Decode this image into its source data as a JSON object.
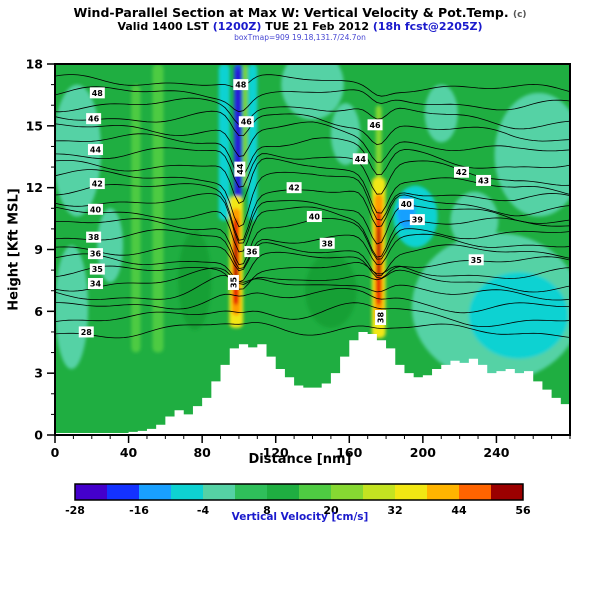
{
  "header": {
    "title": "Wind-Parallel Section at Max W: Vertical Velocity & Pot.Temp.",
    "title_suffix": "(c)",
    "valid": {
      "prefix": "Valid 1400 LST ",
      "zulu": "(1200Z)",
      "mid": " TUE 21 Feb 2012 ",
      "fcst": "(18h fcst@2205Z)"
    },
    "meta_line": "boxTmap=909 19.18,131.7/24.7on"
  },
  "colors": {
    "accent_blue": "#1a1acc",
    "meta_blue": "#4646d2",
    "axis_black": "#000000"
  },
  "chart_data": {
    "type": "heatmap",
    "title": "Wind-Parallel Section at Max W: Vertical Velocity & Pot.Temp. (c)",
    "subtitle": "Valid 1400 LST (1200Z) TUE 21 Feb 2012 (18h fcst@2205Z)",
    "xlabel": "Distance [nm]",
    "ylabel": "Height [Kft MSL]",
    "xlim": [
      0,
      280
    ],
    "ylim": [
      0,
      18
    ],
    "x_ticks": [
      0,
      40,
      80,
      120,
      160,
      200,
      240
    ],
    "x_minor_step": 10,
    "y_ticks": [
      0,
      3,
      6,
      9,
      12,
      15,
      18
    ],
    "y_minor_step": 1,
    "grid": false,
    "background_value_color": "#1fae41",
    "colorbar": {
      "label": "Vertical Velocity [cm/s]",
      "tick_values": [
        -28,
        -16,
        -4,
        8,
        20,
        32,
        44,
        56
      ],
      "segment_min": -28,
      "segment_step": 6,
      "colors": [
        "#4400cc",
        "#1432ff",
        "#19a0ff",
        "#0ed2d2",
        "#55d2a5",
        "#2fbf5a",
        "#1fae41",
        "#4ecb42",
        "#86d832",
        "#c3e321",
        "#f2e713",
        "#ffb400",
        "#ff6400",
        "#e61400"
      ],
      "last_color": "#9b0000"
    },
    "contours": {
      "variable": "Potential Temperature",
      "unit": "C",
      "interval": 1,
      "level_min": 28,
      "level_max": 49,
      "labels": [
        {
          "v": 28,
          "x": 17,
          "y": 5.0
        },
        {
          "v": 34,
          "x": 22,
          "y": 7.35
        },
        {
          "v": 35,
          "x": 23,
          "y": 8.05
        },
        {
          "v": 36,
          "x": 22,
          "y": 8.8
        },
        {
          "v": 38,
          "x": 21,
          "y": 9.6
        },
        {
          "v": 40,
          "x": 22,
          "y": 10.95
        },
        {
          "v": 42,
          "x": 23,
          "y": 12.2
        },
        {
          "v": 44,
          "x": 22,
          "y": 13.85
        },
        {
          "v": 46,
          "x": 21,
          "y": 15.35
        },
        {
          "v": 48,
          "x": 23,
          "y": 16.6
        },
        {
          "v": 35,
          "x": 97,
          "y": 7.4,
          "r": 90
        },
        {
          "v": 44,
          "x": 100.5,
          "y": 12.9,
          "r": 90
        },
        {
          "v": 46,
          "x": 104,
          "y": 15.2
        },
        {
          "v": 48,
          "x": 101,
          "y": 17.0
        },
        {
          "v": 36,
          "x": 107,
          "y": 8.9
        },
        {
          "v": 38,
          "x": 148,
          "y": 9.3
        },
        {
          "v": 40,
          "x": 141,
          "y": 10.6
        },
        {
          "v": 42,
          "x": 130,
          "y": 12.0
        },
        {
          "v": 44,
          "x": 166,
          "y": 13.4
        },
        {
          "v": 46,
          "x": 174,
          "y": 15.05
        },
        {
          "v": 38,
          "x": 177,
          "y": 5.7,
          "r": 90
        },
        {
          "v": 40,
          "x": 191,
          "y": 11.2
        },
        {
          "v": 39,
          "x": 197,
          "y": 10.45
        },
        {
          "v": 42,
          "x": 221,
          "y": 12.75
        },
        {
          "v": 43,
          "x": 233,
          "y": 12.35
        },
        {
          "v": 35,
          "x": 229,
          "y": 8.5
        }
      ]
    },
    "terrain": {
      "x_step_nm": 5,
      "heights_kft": [
        0.1,
        0.1,
        0.1,
        0.1,
        0.1,
        0.1,
        0.1,
        0.1,
        0.15,
        0.2,
        0.3,
        0.5,
        0.9,
        1.2,
        1.0,
        1.4,
        1.8,
        2.6,
        3.4,
        4.2,
        4.4,
        4.25,
        4.4,
        3.8,
        3.2,
        2.8,
        2.4,
        2.3,
        2.3,
        2.5,
        3.0,
        3.8,
        4.6,
        5.0,
        4.9,
        4.6,
        4.2,
        3.4,
        3.0,
        2.8,
        2.9,
        3.2,
        3.4,
        3.6,
        3.5,
        3.7,
        3.4,
        3.0,
        3.1,
        3.2,
        3.0,
        3.1,
        2.6,
        2.2,
        1.8,
        1.5,
        1.4
      ]
    },
    "field_features": [
      {
        "s": "e",
        "x": 76,
        "y": 7.5,
        "rx": 9,
        "ry": 2.4,
        "c": "#18a035"
      },
      {
        "s": "e",
        "x": 150,
        "y": 7.0,
        "rx": 14,
        "ry": 1.8,
        "c": "#18a035"
      },
      {
        "s": "e",
        "x": 12,
        "y": 13.8,
        "rx": 13,
        "ry": 3.2,
        "c": "#55d2a5"
      },
      {
        "s": "e",
        "x": 9,
        "y": 6.2,
        "rx": 9,
        "ry": 3.0,
        "c": "#55d2a5"
      },
      {
        "s": "e",
        "x": 30,
        "y": 9.2,
        "rx": 7,
        "ry": 1.8,
        "c": "#55d2a5"
      },
      {
        "s": "e",
        "x": 140,
        "y": 17.0,
        "rx": 17,
        "ry": 1.7,
        "c": "#55d2a5"
      },
      {
        "s": "e",
        "x": 158,
        "y": 14.6,
        "rx": 8,
        "ry": 1.5,
        "c": "#55d2a5"
      },
      {
        "s": "e",
        "x": 240,
        "y": 6.2,
        "rx": 46,
        "ry": 3.6,
        "c": "#55d2a5"
      },
      {
        "s": "e",
        "x": 252,
        "y": 5.8,
        "rx": 27,
        "ry": 2.1,
        "c": "#0ed2d2"
      },
      {
        "s": "e",
        "x": 263,
        "y": 13.6,
        "rx": 24,
        "ry": 3.0,
        "c": "#55d2a5"
      },
      {
        "s": "e",
        "x": 210,
        "y": 15.6,
        "rx": 9,
        "ry": 1.4,
        "c": "#55d2a5"
      },
      {
        "s": "e",
        "x": 228,
        "y": 10.4,
        "rx": 13,
        "ry": 1.4,
        "c": "#55d2a5"
      },
      {
        "s": "r",
        "x": 44,
        "y": 10.5,
        "w": 5,
        "h": 13,
        "c": "#4ecb42"
      },
      {
        "s": "r",
        "x": 56,
        "y": 11.0,
        "w": 6,
        "h": 14,
        "c": "#4ecb42"
      },
      {
        "s": "r",
        "x": 92,
        "y": 14.2,
        "w": 6,
        "h": 7.6,
        "c": "#0ed2d2"
      },
      {
        "s": "r",
        "x": 107.5,
        "y": 14.2,
        "w": 5,
        "h": 7.6,
        "c": "#0ed2d2"
      },
      {
        "s": "r",
        "x": 99.5,
        "y": 14.0,
        "w": 4.4,
        "h": 8.0,
        "c": "#1c46f0"
      },
      {
        "s": "r",
        "x": 99.5,
        "y": 14.6,
        "w": 2.4,
        "h": 6.4,
        "c": "#2a0ad2"
      },
      {
        "s": "r",
        "x": 103.4,
        "y": 15.0,
        "w": 2.2,
        "h": 6.0,
        "c": "#86d832"
      },
      {
        "s": "r",
        "x": 98.5,
        "y": 8.4,
        "w": 7.5,
        "h": 6.4,
        "c": "#f2e713"
      },
      {
        "s": "r",
        "x": 98.5,
        "y": 8.4,
        "w": 4.8,
        "h": 5.2,
        "c": "#ff9c00"
      },
      {
        "s": "r",
        "x": 98.3,
        "y": 8.4,
        "w": 3.0,
        "h": 4.2,
        "c": "#e61400"
      },
      {
        "s": "r",
        "x": 98.3,
        "y": 8.6,
        "w": 1.5,
        "h": 2.4,
        "c": "#9b0000"
      },
      {
        "s": "r",
        "x": 176,
        "y": 14.2,
        "w": 3.2,
        "h": 3.6,
        "c": "#86d832"
      },
      {
        "s": "r",
        "x": 176,
        "y": 8.6,
        "w": 7.4,
        "h": 7.8,
        "c": "#f2e713"
      },
      {
        "s": "r",
        "x": 176,
        "y": 8.6,
        "w": 4.6,
        "h": 6.2,
        "c": "#ff9c00"
      },
      {
        "s": "r",
        "x": 176,
        "y": 8.6,
        "w": 2.6,
        "h": 4.6,
        "c": "#e61400"
      },
      {
        "s": "r",
        "x": 176,
        "y": 8.8,
        "w": 1.3,
        "h": 2.4,
        "c": "#9b0000"
      },
      {
        "s": "e",
        "x": 196,
        "y": 10.6,
        "rx": 12,
        "ry": 1.5,
        "c": "#0ed2d2"
      },
      {
        "s": "e",
        "x": 191,
        "y": 10.8,
        "rx": 5,
        "ry": 0.8,
        "c": "#19a0ff"
      }
    ]
  }
}
